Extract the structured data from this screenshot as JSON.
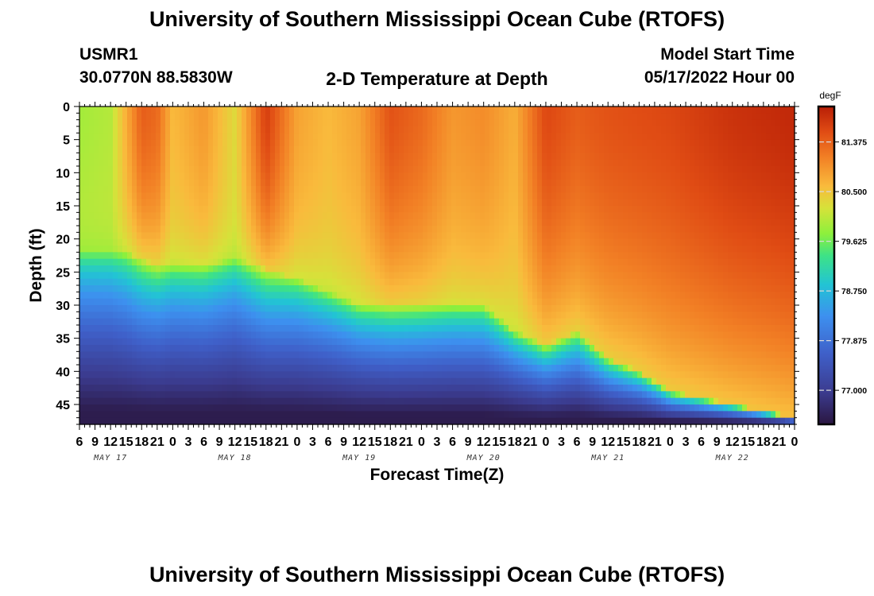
{
  "header": {
    "title": "University of Southern Mississippi Ocean Cube (RTOFS)",
    "station_id": "USMR1",
    "coordinates": "30.0770N  88.5830W",
    "product": "2-D Temperature at Depth",
    "model_start_label": "Model Start Time",
    "model_start_value": "05/17/2022 Hour 00"
  },
  "footer": {
    "title": "University of Southern Mississippi Ocean Cube (RTOFS)"
  },
  "chart_data": {
    "type": "heatmap",
    "title": "2-D Temperature at Depth",
    "xlabel": "Forecast Time(Z)",
    "ylabel": "Depth (ft)",
    "x_hours_range": [
      6,
      144
    ],
    "ylim": [
      0,
      48
    ],
    "x_tick_labels": [
      "6",
      "9",
      "12",
      "15",
      "18",
      "21",
      "0",
      "3",
      "6",
      "9",
      "12",
      "15",
      "18",
      "21",
      "0",
      "3",
      "6",
      "9",
      "12",
      "15",
      "18",
      "21",
      "0",
      "3",
      "6",
      "9",
      "12",
      "15",
      "18",
      "21",
      "0",
      "3",
      "6",
      "9",
      "12",
      "15",
      "18",
      "21",
      "0",
      "3",
      "6",
      "9",
      "12",
      "15",
      "18",
      "21",
      "0"
    ],
    "date_labels": [
      {
        "text": "MAY 17",
        "hour": 12
      },
      {
        "text": "MAY 18",
        "hour": 36
      },
      {
        "text": "MAY 19",
        "hour": 60
      },
      {
        "text": "MAY 20",
        "hour": 84
      },
      {
        "text": "MAY 21",
        "hour": 108
      },
      {
        "text": "MAY 22",
        "hour": 132
      }
    ],
    "y_ticks": [
      0,
      5,
      10,
      15,
      20,
      25,
      30,
      35,
      40,
      45
    ],
    "colorbar": {
      "unit": "degF",
      "min": 76.4,
      "max": 82.0,
      "labels": [
        "81.375",
        "80.500",
        "79.625",
        "78.750",
        "77.875",
        "77.000"
      ]
    },
    "warm_layer_depth": {
      "hours": [
        6,
        15,
        21,
        30,
        36,
        48,
        54,
        60,
        72,
        84,
        90,
        96,
        102,
        108,
        114,
        120,
        132,
        138,
        144
      ],
      "depth_ft": [
        22,
        22,
        24,
        24,
        23,
        26,
        28,
        30,
        30,
        30,
        34,
        36,
        34,
        38,
        40,
        43,
        45,
        46,
        47
      ]
    },
    "surface_temp_keypoints": {
      "hours": [
        6,
        12,
        18,
        21,
        24,
        30,
        36,
        42,
        48,
        54,
        60,
        66,
        72,
        78,
        84,
        90,
        96,
        102,
        108,
        120,
        132,
        144
      ],
      "temp_f": [
        79.9,
        80.0,
        81.4,
        81.3,
        80.6,
        80.9,
        80.3,
        81.7,
        80.8,
        80.6,
        80.8,
        81.5,
        81.3,
        80.9,
        81.0,
        80.7,
        81.6,
        81.4,
        81.5,
        81.6,
        81.8,
        81.9
      ]
    },
    "colormap_stops": [
      {
        "t": 0.0,
        "color": "#2a1640"
      },
      {
        "t": 0.1,
        "color": "#3b3b8e"
      },
      {
        "t": 0.22,
        "color": "#3f5fc8"
      },
      {
        "t": 0.34,
        "color": "#3d90ef"
      },
      {
        "t": 0.44,
        "color": "#22c4d4"
      },
      {
        "t": 0.53,
        "color": "#3de287"
      },
      {
        "t": 0.6,
        "color": "#8df03c"
      },
      {
        "t": 0.68,
        "color": "#d6e23a"
      },
      {
        "t": 0.75,
        "color": "#f9ba3c"
      },
      {
        "t": 0.84,
        "color": "#f28025"
      },
      {
        "t": 0.92,
        "color": "#e04c14"
      },
      {
        "t": 1.0,
        "color": "#b81e06"
      }
    ]
  }
}
